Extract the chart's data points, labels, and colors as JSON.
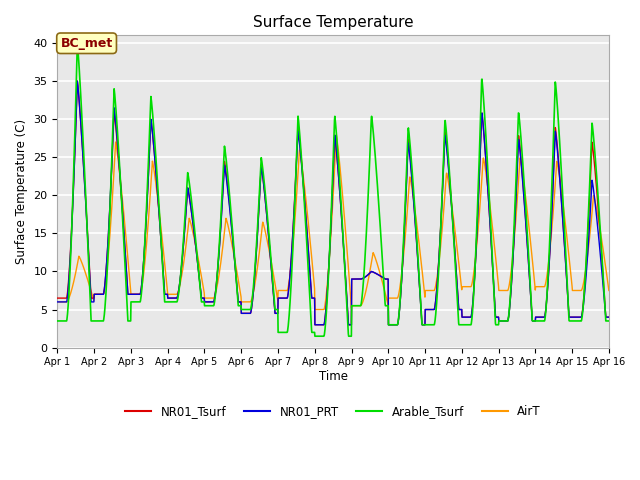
{
  "title": "Surface Temperature",
  "ylabel": "Surface Temperature (C)",
  "xlabel": "Time",
  "annotation": "BC_met",
  "ylim": [
    0,
    41
  ],
  "xlim": [
    0,
    360
  ],
  "background_color": "#e8e8e8",
  "grid_color": "#ffffff",
  "series_colors": {
    "NR01_Tsurf": "#dd0000",
    "NR01_PRT": "#0000dd",
    "Arable_Tsurf": "#00dd00",
    "AirT": "#ff9900"
  },
  "tick_labels": [
    "Apr 1",
    "Apr 2",
    "Apr 3",
    "Apr 4",
    "Apr 5",
    "Apr 6",
    "Apr 7",
    "Apr 8",
    "Apr 9",
    "Apr 10",
    "Apr 11",
    "Apr 12",
    "Apr 13",
    "Apr 14",
    "Apr 15",
    "Apr 16"
  ],
  "tick_positions": [
    0,
    24,
    48,
    72,
    96,
    120,
    144,
    168,
    192,
    216,
    240,
    264,
    288,
    312,
    336,
    360
  ],
  "figsize": [
    6.4,
    4.8
  ],
  "dpi": 100
}
